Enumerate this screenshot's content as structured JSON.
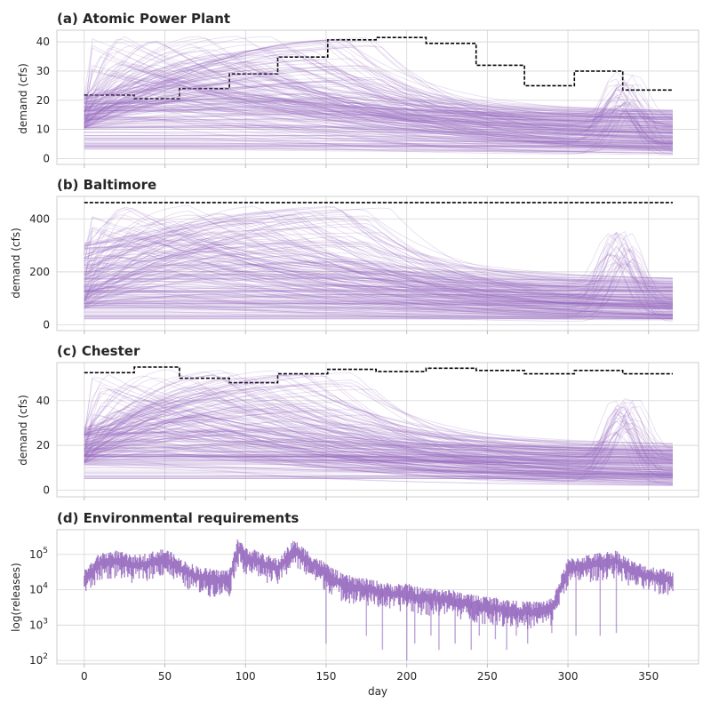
{
  "accent_color": "#9467bd",
  "requirement_color": "#000000",
  "chart_data": [
    {
      "type": "line",
      "title": "(a) Atomic Power Plant",
      "xlabel": "",
      "ylabel": "demand (cfs)",
      "xlim": [
        -17,
        381
      ],
      "ylim": [
        -2,
        44
      ],
      "xticks": [
        0,
        50,
        100,
        150,
        200,
        250,
        300,
        350
      ],
      "yticks": [
        0,
        10,
        20,
        30,
        40
      ],
      "ytick_labels": [
        "0",
        "10",
        "20",
        "30",
        "40"
      ],
      "x_tick_labels_shown": false,
      "grid": true,
      "series": [
        {
          "style": "dashed-step",
          "x": [
            0,
            31,
            31,
            59,
            59,
            90,
            90,
            120,
            120,
            151,
            151,
            181,
            181,
            212,
            212,
            243,
            243,
            273,
            273,
            304,
            304,
            334,
            334,
            365
          ],
          "values": [
            21.8,
            21.8,
            20.5,
            20.5,
            24,
            24,
            29,
            29,
            34.8,
            34.8,
            40.7,
            40.7,
            41.5,
            41.5,
            39.5,
            39.5,
            32,
            32,
            25,
            25,
            30,
            30,
            23.5,
            23.5
          ]
        },
        {
          "style": "ensemble",
          "n_members": 220,
          "peak_day_range": [
            0,
            185
          ],
          "peak_value_range": [
            3,
            42
          ],
          "start_value_range": [
            10,
            22
          ],
          "end_value_range": [
            1,
            16
          ],
          "spike_day": 335,
          "spike_value_range": [
            14,
            30
          ],
          "spike_width": 12
        }
      ]
    },
    {
      "type": "line",
      "title": "(b) Baltimore",
      "xlabel": "",
      "ylabel": "demand (cfs)",
      "xlim": [
        -17,
        381
      ],
      "ylim": [
        -22,
        485
      ],
      "xticks": [
        0,
        50,
        100,
        150,
        200,
        250,
        300,
        350
      ],
      "yticks": [
        0,
        200,
        400
      ],
      "ytick_labels": [
        "0",
        "200",
        "400"
      ],
      "x_tick_labels_shown": false,
      "grid": true,
      "series": [
        {
          "style": "dashed-step",
          "x": [
            0,
            365
          ],
          "values": [
            462,
            462
          ]
        },
        {
          "style": "ensemble",
          "n_members": 220,
          "peak_day_range": [
            0,
            190
          ],
          "peak_value_range": [
            20,
            450
          ],
          "start_value_range": [
            60,
            310
          ],
          "end_value_range": [
            10,
            170
          ],
          "spike_day": 333,
          "spike_value_range": [
            220,
            360
          ],
          "spike_width": 12
        }
      ]
    },
    {
      "type": "line",
      "title": "(c) Chester",
      "xlabel": "",
      "ylabel": "demand (cfs)",
      "xlim": [
        -17,
        381
      ],
      "ylim": [
        -3,
        57
      ],
      "xticks": [
        0,
        50,
        100,
        150,
        200,
        250,
        300,
        350
      ],
      "yticks": [
        0,
        20,
        40
      ],
      "ytick_labels": [
        "0",
        "20",
        "40"
      ],
      "x_tick_labels_shown": false,
      "grid": true,
      "series": [
        {
          "style": "dashed-step",
          "x": [
            0,
            31,
            31,
            59,
            59,
            90,
            90,
            120,
            120,
            151,
            151,
            181,
            181,
            212,
            212,
            243,
            243,
            273,
            273,
            304,
            304,
            334,
            334,
            365
          ],
          "values": [
            52.5,
            52.5,
            55,
            55,
            50,
            50,
            48,
            48,
            52,
            52,
            54,
            54,
            53,
            53,
            54.5,
            54.5,
            53.5,
            53.5,
            52,
            52,
            53.5,
            53.5,
            52,
            52
          ]
        },
        {
          "style": "ensemble",
          "n_members": 220,
          "peak_day_range": [
            0,
            180
          ],
          "peak_value_range": [
            5,
            54
          ],
          "start_value_range": [
            12,
            28
          ],
          "end_value_range": [
            1,
            20
          ],
          "spike_day": 335,
          "spike_value_range": [
            25,
            45
          ],
          "spike_width": 12
        }
      ]
    },
    {
      "type": "line",
      "title": "(d) Environmental requirements",
      "xlabel": "day",
      "ylabel": "log(releases)",
      "xlim": [
        -17,
        381
      ],
      "ylim": [
        80,
        500000
      ],
      "yscale": "log",
      "xticks": [
        0,
        50,
        100,
        150,
        200,
        250,
        300,
        350
      ],
      "xtick_labels": [
        "0",
        "50",
        "100",
        "150",
        "200",
        "250",
        "300",
        "350"
      ],
      "yticks": [
        100,
        1000,
        10000,
        100000
      ],
      "ytick_labels": [
        {
          "base": "10",
          "exp": "2"
        },
        {
          "base": "10",
          "exp": "3"
        },
        {
          "base": "10",
          "exp": "4"
        },
        {
          "base": "10",
          "exp": "5"
        }
      ],
      "x_tick_labels_shown": true,
      "grid": true,
      "series": [
        {
          "style": "noisy-log-band",
          "x": [
            0,
            10,
            20,
            30,
            40,
            50,
            60,
            70,
            80,
            90,
            95,
            100,
            110,
            120,
            130,
            140,
            150,
            160,
            170,
            180,
            190,
            200,
            210,
            220,
            230,
            240,
            250,
            260,
            270,
            280,
            290,
            300,
            310,
            320,
            330,
            340,
            350,
            365
          ],
          "values": [
            20000,
            60000,
            70000,
            50000,
            60000,
            80000,
            40000,
            25000,
            20000,
            20000,
            150000,
            90000,
            60000,
            40000,
            140000,
            60000,
            30000,
            15000,
            12000,
            10000,
            8000,
            8000,
            6000,
            6000,
            5000,
            4000,
            3500,
            3000,
            2500,
            2500,
            3000,
            40000,
            50000,
            60000,
            70000,
            35000,
            25000,
            20000
          ],
          "dropouts": [
            {
              "day": 150,
              "min": 300
            },
            {
              "day": 175,
              "min": 500
            },
            {
              "day": 185,
              "min": 200
            },
            {
              "day": 200,
              "min": 100
            },
            {
              "day": 205,
              "min": 300
            },
            {
              "day": 215,
              "min": 500
            },
            {
              "day": 220,
              "min": 200
            },
            {
              "day": 230,
              "min": 300
            },
            {
              "day": 240,
              "min": 200
            },
            {
              "day": 245,
              "min": 500
            },
            {
              "day": 255,
              "min": 400
            },
            {
              "day": 262,
              "min": 200
            },
            {
              "day": 268,
              "min": 500
            },
            {
              "day": 275,
              "min": 300
            },
            {
              "day": 290,
              "min": 600
            },
            {
              "day": 305,
              "min": 500
            },
            {
              "day": 320,
              "min": 500
            },
            {
              "day": 330,
              "min": 600
            }
          ]
        }
      ]
    }
  ]
}
